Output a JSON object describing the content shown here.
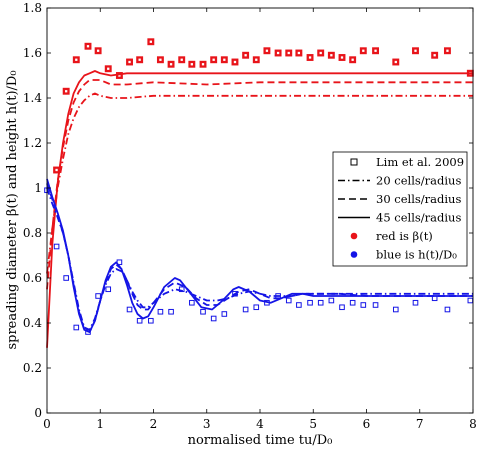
{
  "chart_data": {
    "type": "line",
    "xlabel": "normalised time tu/D₀",
    "ylabel": "spreading diameter β(t) and height h(t)/D₀",
    "xlim": [
      0,
      8
    ],
    "ylim": [
      0,
      1.8
    ],
    "xticks": [
      "0",
      "1",
      "2",
      "3",
      "4",
      "5",
      "6",
      "7",
      "8"
    ],
    "yticks": [
      "0",
      "0.2",
      "0.4",
      "0.6",
      "0.8",
      "1",
      "1.2",
      "1.4",
      "1.6",
      "1.8"
    ],
    "grid": false,
    "legend_position": "right",
    "legend": [
      {
        "label": "Lim et al. 2009",
        "marker": "square-open",
        "color": "#000000"
      },
      {
        "label": "20 cells/radius",
        "line": "dashdot",
        "color": "#000000"
      },
      {
        "label": "30 cells/radius",
        "line": "dashed",
        "color": "#000000"
      },
      {
        "label": "45 cells/radius",
        "line": "solid",
        "color": "#000000"
      },
      {
        "label": "red is β(t)",
        "marker": "dot",
        "color": "#e8141a"
      },
      {
        "label": "blue is h(t)/D₀",
        "marker": "dot",
        "color": "#1414e6"
      }
    ],
    "series": [
      {
        "quantity": "beta",
        "resolution": "20",
        "style": "dashdot",
        "color": "#e8141a",
        "x": [
          0,
          0.1,
          0.2,
          0.3,
          0.4,
          0.5,
          0.6,
          0.7,
          0.8,
          0.9,
          1.0,
          1.2,
          1.5,
          2,
          3,
          4,
          5,
          6,
          7,
          8
        ],
        "y": [
          0.62,
          0.82,
          1.0,
          1.13,
          1.24,
          1.31,
          1.36,
          1.39,
          1.41,
          1.42,
          1.41,
          1.4,
          1.4,
          1.41,
          1.41,
          1.41,
          1.41,
          1.41,
          1.41,
          1.41
        ]
      },
      {
        "quantity": "beta",
        "resolution": "30",
        "style": "dashed",
        "color": "#e8141a",
        "x": [
          0,
          0.1,
          0.2,
          0.3,
          0.4,
          0.5,
          0.6,
          0.7,
          0.8,
          0.9,
          1.0,
          1.2,
          1.5,
          2,
          3,
          4,
          5,
          6,
          7,
          8
        ],
        "y": [
          0.55,
          0.82,
          1.03,
          1.18,
          1.3,
          1.38,
          1.43,
          1.46,
          1.48,
          1.48,
          1.48,
          1.46,
          1.46,
          1.47,
          1.46,
          1.47,
          1.47,
          1.47,
          1.47,
          1.47
        ]
      },
      {
        "quantity": "beta",
        "resolution": "45",
        "style": "solid",
        "color": "#e8141a",
        "x": [
          0,
          0.1,
          0.2,
          0.3,
          0.4,
          0.5,
          0.6,
          0.7,
          0.8,
          0.9,
          1.0,
          1.2,
          1.5,
          2,
          3,
          4,
          5,
          6,
          7,
          8
        ],
        "y": [
          0.29,
          0.75,
          1.02,
          1.2,
          1.33,
          1.42,
          1.47,
          1.5,
          1.51,
          1.52,
          1.51,
          1.5,
          1.51,
          1.51,
          1.51,
          1.51,
          1.51,
          1.51,
          1.51,
          1.51
        ]
      },
      {
        "quantity": "h",
        "resolution": "20",
        "style": "dashdot",
        "color": "#1414e6",
        "x": [
          0,
          0.1,
          0.2,
          0.3,
          0.4,
          0.5,
          0.6,
          0.7,
          0.8,
          0.9,
          1.0,
          1.1,
          1.2,
          1.3,
          1.4,
          1.5,
          1.6,
          1.7,
          1.8,
          1.9,
          2.0,
          2.2,
          2.4,
          2.6,
          2.8,
          3.0,
          3.2,
          3.4,
          3.6,
          3.8,
          4.0,
          4.2,
          4.4,
          4.6,
          4.8,
          5.0,
          5.5,
          6,
          7,
          8
        ],
        "y": [
          1.0,
          0.93,
          0.87,
          0.8,
          0.7,
          0.58,
          0.46,
          0.38,
          0.37,
          0.42,
          0.5,
          0.57,
          0.62,
          0.64,
          0.63,
          0.59,
          0.54,
          0.5,
          0.47,
          0.47,
          0.49,
          0.53,
          0.55,
          0.54,
          0.52,
          0.5,
          0.5,
          0.51,
          0.53,
          0.54,
          0.53,
          0.52,
          0.52,
          0.52,
          0.53,
          0.53,
          0.53,
          0.53,
          0.53,
          0.53
        ]
      },
      {
        "quantity": "h",
        "resolution": "30",
        "style": "dashed",
        "color": "#1414e6",
        "x": [
          0,
          0.1,
          0.2,
          0.3,
          0.4,
          0.5,
          0.6,
          0.7,
          0.8,
          0.9,
          1.0,
          1.1,
          1.2,
          1.3,
          1.4,
          1.5,
          1.6,
          1.7,
          1.8,
          1.9,
          2.0,
          2.2,
          2.4,
          2.6,
          2.8,
          3.0,
          3.2,
          3.4,
          3.6,
          3.8,
          4.0,
          4.2,
          4.4,
          4.6,
          4.8,
          5.0,
          5.5,
          6,
          7,
          8
        ],
        "y": [
          1.02,
          0.95,
          0.88,
          0.8,
          0.7,
          0.57,
          0.45,
          0.37,
          0.36,
          0.41,
          0.5,
          0.58,
          0.64,
          0.66,
          0.64,
          0.59,
          0.53,
          0.48,
          0.46,
          0.46,
          0.49,
          0.55,
          0.58,
          0.56,
          0.51,
          0.48,
          0.48,
          0.51,
          0.54,
          0.55,
          0.53,
          0.51,
          0.51,
          0.52,
          0.53,
          0.53,
          0.53,
          0.52,
          0.52,
          0.52
        ]
      },
      {
        "quantity": "h",
        "resolution": "45",
        "style": "solid",
        "color": "#1414e6",
        "x": [
          0,
          0.1,
          0.2,
          0.3,
          0.4,
          0.5,
          0.6,
          0.7,
          0.8,
          0.9,
          1.0,
          1.1,
          1.2,
          1.3,
          1.4,
          1.5,
          1.6,
          1.7,
          1.8,
          1.9,
          2.0,
          2.2,
          2.4,
          2.5,
          2.7,
          2.9,
          3.1,
          3.3,
          3.5,
          3.6,
          3.8,
          4.0,
          4.2,
          4.4,
          4.6,
          4.8,
          5.0,
          5.5,
          6,
          7,
          8
        ],
        "y": [
          1.04,
          0.96,
          0.89,
          0.81,
          0.7,
          0.56,
          0.44,
          0.37,
          0.36,
          0.41,
          0.5,
          0.59,
          0.65,
          0.67,
          0.64,
          0.57,
          0.49,
          0.44,
          0.42,
          0.43,
          0.47,
          0.56,
          0.6,
          0.59,
          0.53,
          0.47,
          0.46,
          0.5,
          0.55,
          0.56,
          0.54,
          0.5,
          0.49,
          0.51,
          0.53,
          0.53,
          0.52,
          0.52,
          0.52,
          0.52,
          0.52
        ]
      },
      {
        "quantity": "beta",
        "name": "Lim et al. 2009",
        "style": "square-open",
        "color": "#e8141a",
        "x": [
          0.18,
          0.36,
          0.55,
          0.77,
          0.96,
          1.15,
          1.36,
          1.55,
          1.74,
          1.95,
          2.13,
          2.33,
          2.53,
          2.72,
          2.93,
          3.13,
          3.33,
          3.53,
          3.73,
          3.93,
          4.13,
          4.34,
          4.54,
          4.73,
          4.94,
          5.14,
          5.34,
          5.54,
          5.74,
          5.94,
          6.17,
          6.55,
          6.92,
          7.28,
          7.52,
          7.95
        ],
        "y": [
          1.08,
          1.43,
          1.57,
          1.63,
          1.61,
          1.53,
          1.5,
          1.56,
          1.57,
          1.65,
          1.57,
          1.55,
          1.57,
          1.55,
          1.55,
          1.57,
          1.57,
          1.56,
          1.59,
          1.57,
          1.61,
          1.6,
          1.6,
          1.6,
          1.58,
          1.6,
          1.59,
          1.58,
          1.57,
          1.61,
          1.61,
          1.56,
          1.61,
          1.59,
          1.61,
          1.51
        ]
      },
      {
        "quantity": "h",
        "name": "Lim et al. 2009",
        "style": "square-open",
        "color": "#1414e6",
        "x": [
          0.0,
          0.18,
          0.36,
          0.55,
          0.77,
          0.96,
          1.15,
          1.36,
          1.55,
          1.74,
          1.95,
          2.13,
          2.33,
          2.53,
          2.72,
          2.93,
          3.13,
          3.33,
          3.53,
          3.73,
          3.93,
          4.13,
          4.34,
          4.54,
          4.73,
          4.94,
          5.14,
          5.34,
          5.54,
          5.74,
          5.94,
          6.17,
          6.55,
          6.92,
          7.28,
          7.52,
          7.95
        ],
        "y": [
          0.99,
          0.74,
          0.6,
          0.38,
          0.36,
          0.52,
          0.55,
          0.67,
          0.46,
          0.41,
          0.41,
          0.45,
          0.45,
          0.55,
          0.49,
          0.45,
          0.42,
          0.44,
          0.53,
          0.46,
          0.47,
          0.49,
          0.52,
          0.5,
          0.48,
          0.49,
          0.49,
          0.5,
          0.47,
          0.49,
          0.48,
          0.48,
          0.46,
          0.49,
          0.51,
          0.46,
          0.5
        ]
      }
    ]
  }
}
